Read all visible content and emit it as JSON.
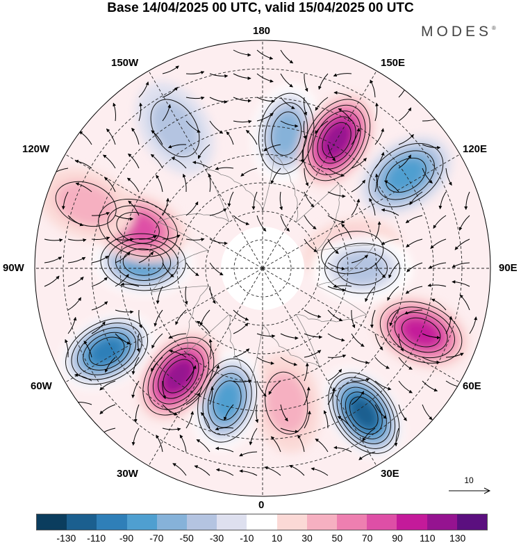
{
  "header": {
    "title": "Base 14/04/2025 00 UTC, valid 15/04/2025 00 UTC",
    "brand": "MODES",
    "brand_mark": "®"
  },
  "map": {
    "longitude_labels": {
      "n180": "180",
      "e150": "150E",
      "e120": "120E",
      "e90": "90E",
      "e60": "60E",
      "e30": "30E",
      "n0": "0",
      "w30": "30W",
      "w60": "60W",
      "w90": "90W",
      "w120": "120W",
      "w150": "150W"
    },
    "reference_vector_label": "10",
    "anomaly_centers": [
      {
        "lon": 170,
        "lat": 42,
        "value": -70
      },
      {
        "lon": 150,
        "lat": 38,
        "value": 125
      },
      {
        "lon": 123,
        "lat": 30,
        "value": -85
      },
      {
        "lon": 68,
        "lat": 30,
        "value": 100
      },
      {
        "lon": 35,
        "lat": 28,
        "value": -130
      },
      {
        "lon": 10,
        "lat": 42,
        "value": 45
      },
      {
        "lon": -15,
        "lat": 42,
        "value": -90
      },
      {
        "lon": -38,
        "lat": 42,
        "value": 115
      },
      {
        "lon": -62,
        "lat": 28,
        "value": -110
      },
      {
        "lon": -93,
        "lat": 48,
        "value": -90
      },
      {
        "lon": -108,
        "lat": 44,
        "value": 80
      },
      {
        "lon": -110,
        "lat": 24,
        "value": 40
      },
      {
        "lon": -148,
        "lat": 32,
        "value": -35
      },
      {
        "lon": 100,
        "lat": 58,
        "value": 40
      },
      {
        "lon": 90,
        "lat": 55,
        "value": -50
      }
    ]
  },
  "colorbar": {
    "colors": [
      "#0b3d5e",
      "#1b5f8f",
      "#2f7fb8",
      "#4f9fd0",
      "#86b2d9",
      "#b4c4e1",
      "#dee0ef",
      "#ffffff",
      "#fbd9d6",
      "#f6b0c1",
      "#ee7fb0",
      "#de4fa6",
      "#c41a9a",
      "#951390",
      "#5b0f7f"
    ],
    "tick_labels": [
      "-130",
      "-110",
      "-90",
      "-70",
      "-50",
      "-30",
      "-10",
      "10",
      "30",
      "50",
      "70",
      "90",
      "110",
      "130"
    ]
  }
}
